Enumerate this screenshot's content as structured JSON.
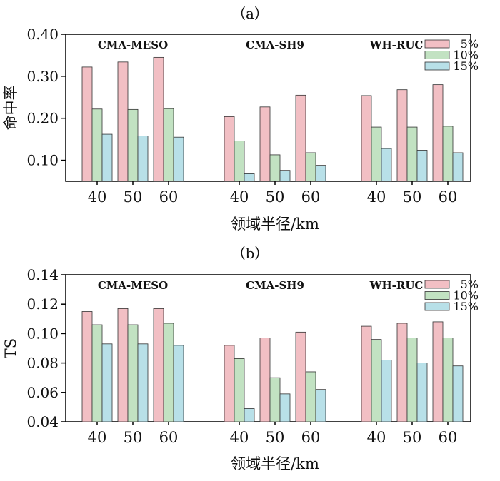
{
  "figure": {
    "panels": [
      {
        "label": "（a）",
        "title": "",
        "xlabel": "领域半径/km",
        "ylabel": "命中率"
      },
      {
        "label": "（b）",
        "title": "",
        "xlabel": "领域半径/km",
        "ylabel": "TS"
      }
    ]
  },
  "chart_data": [
    {
      "type": "bar",
      "panel": "（a）",
      "ylabel": "命中率",
      "xlabel": "领域半径/km",
      "ylim": [
        0.05,
        0.4
      ],
      "yticks": [
        0.1,
        0.2,
        0.3,
        0.4
      ],
      "ytick_labels": [
        "0.10",
        "0.20",
        "0.30",
        "0.40"
      ],
      "grid": false,
      "legend_position": "top-right",
      "series_colors": [
        "#f2bfc4",
        "#c2e2c2",
        "#b8e0e8"
      ],
      "series_names": [
        "5%",
        "10%",
        "15%"
      ],
      "groups": [
        {
          "name": "CMA-MESO",
          "categories": [
            "40",
            "50",
            "60"
          ],
          "series": [
            {
              "name": "5%",
              "values": [
                0.322,
                0.334,
                0.345
              ]
            },
            {
              "name": "10%",
              "values": [
                0.222,
                0.221,
                0.223
              ]
            },
            {
              "name": "15%",
              "values": [
                0.162,
                0.158,
                0.155
              ]
            }
          ]
        },
        {
          "name": "CMA-SH9",
          "categories": [
            "40",
            "50",
            "60"
          ],
          "series": [
            {
              "name": "5%",
              "values": [
                0.204,
                0.227,
                0.255
              ]
            },
            {
              "name": "10%",
              "values": [
                0.146,
                0.113,
                0.118
              ]
            },
            {
              "name": "15%",
              "values": [
                0.068,
                0.076,
                0.088
              ]
            }
          ]
        },
        {
          "name": "WH-RUC",
          "categories": [
            "40",
            "50",
            "60"
          ],
          "series": [
            {
              "name": "5%",
              "values": [
                0.254,
                0.268,
                0.28
              ]
            },
            {
              "name": "10%",
              "values": [
                0.179,
                0.179,
                0.181
              ]
            },
            {
              "name": "15%",
              "values": [
                0.128,
                0.124,
                0.118
              ]
            }
          ]
        }
      ]
    },
    {
      "type": "bar",
      "panel": "（b）",
      "ylabel": "TS",
      "xlabel": "领域半径/km",
      "ylim": [
        0.04,
        0.14
      ],
      "yticks": [
        0.04,
        0.06,
        0.08,
        0.1,
        0.12,
        0.14
      ],
      "ytick_labels": [
        "0.04",
        "0.06",
        "0.08",
        "0.10",
        "0.12",
        "0.14"
      ],
      "grid": false,
      "legend_position": "top-right",
      "series_colors": [
        "#f2bfc4",
        "#c2e2c2",
        "#b8e0e8"
      ],
      "series_names": [
        "5%",
        "10%",
        "15%"
      ],
      "groups": [
        {
          "name": "CMA-MESO",
          "categories": [
            "40",
            "50",
            "60"
          ],
          "series": [
            {
              "name": "5%",
              "values": [
                0.115,
                0.117,
                0.117
              ]
            },
            {
              "name": "10%",
              "values": [
                0.106,
                0.106,
                0.107
              ]
            },
            {
              "name": "15%",
              "values": [
                0.093,
                0.093,
                0.092
              ]
            }
          ]
        },
        {
          "name": "CMA-SH9",
          "categories": [
            "40",
            "50",
            "60"
          ],
          "series": [
            {
              "name": "5%",
              "values": [
                0.092,
                0.097,
                0.101
              ]
            },
            {
              "name": "10%",
              "values": [
                0.083,
                0.07,
                0.074
              ]
            },
            {
              "name": "15%",
              "values": [
                0.049,
                0.059,
                0.062
              ]
            }
          ]
        },
        {
          "name": "WH-RUC",
          "categories": [
            "40",
            "50",
            "60"
          ],
          "series": [
            {
              "name": "5%",
              "values": [
                0.105,
                0.107,
                0.108
              ]
            },
            {
              "name": "10%",
              "values": [
                0.096,
                0.097,
                0.097
              ]
            },
            {
              "name": "15%",
              "values": [
                0.082,
                0.08,
                0.078
              ]
            }
          ]
        }
      ]
    }
  ]
}
